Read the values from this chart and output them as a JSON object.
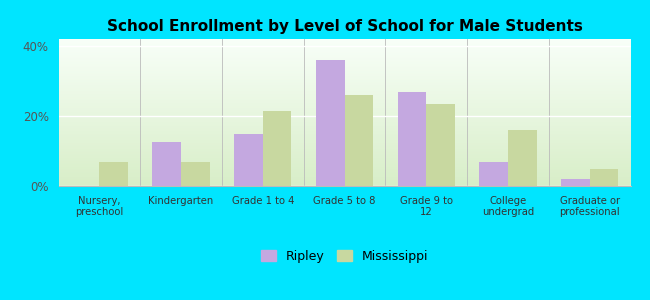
{
  "title": "School Enrollment by Level of School for Male Students",
  "categories": [
    "Nursery,\npreschool",
    "Kindergarten",
    "Grade 1 to 4",
    "Grade 5 to 8",
    "Grade 9 to\n12",
    "College\nundergrad",
    "Graduate or\nprofessional"
  ],
  "ripley": [
    0.0,
    12.5,
    15.0,
    36.0,
    27.0,
    7.0,
    2.0
  ],
  "mississippi": [
    7.0,
    7.0,
    21.5,
    26.0,
    23.5,
    16.0,
    5.0
  ],
  "ripley_color": "#c4a8e0",
  "mississippi_color": "#c8d8a0",
  "background_color": "#00e5ff",
  "title_fontsize": 11,
  "ylim": [
    0,
    42
  ],
  "yticks": [
    0,
    20,
    40
  ],
  "ytick_labels": [
    "0%",
    "20%",
    "40%"
  ],
  "bar_width": 0.35,
  "legend_ripley": "Ripley",
  "legend_mississippi": "Mississippi"
}
